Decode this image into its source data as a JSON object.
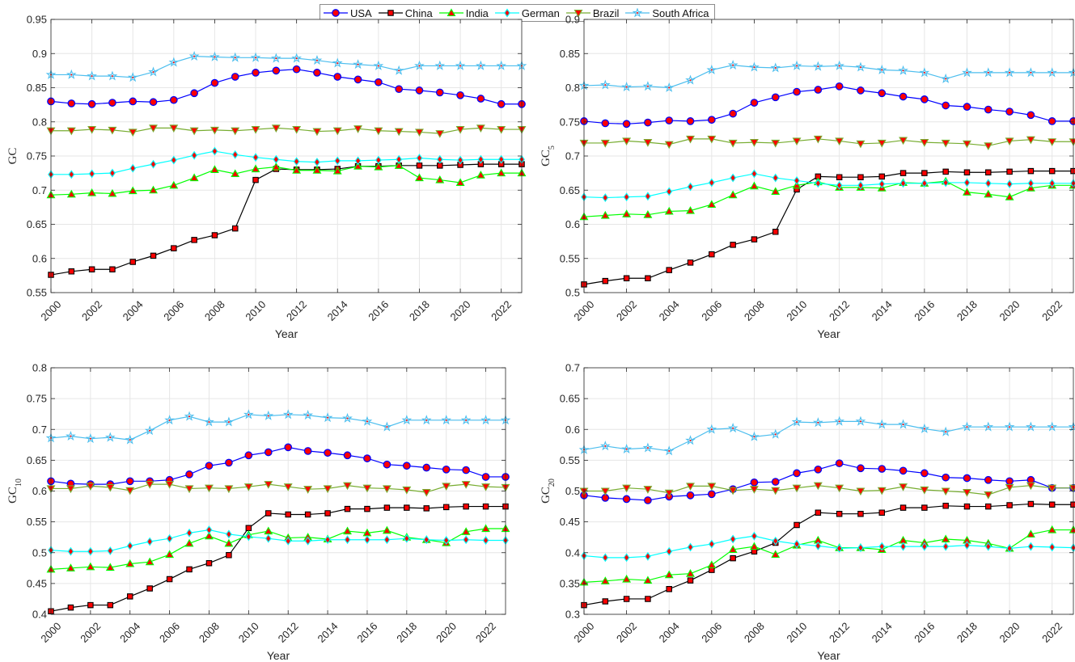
{
  "legend": [
    {
      "name": "USA",
      "color": "#0000ff",
      "marker": "circle",
      "fill": "#ff0000"
    },
    {
      "name": "China",
      "color": "#000000",
      "marker": "square",
      "fill": "#ff0000"
    },
    {
      "name": "India",
      "color": "#00ff00",
      "marker": "triangle-up",
      "fill": "#ff0000"
    },
    {
      "name": "German",
      "color": "#00ffff",
      "marker": "diamond",
      "fill": "#ff0000"
    },
    {
      "name": "Brazil",
      "color": "#77ac30",
      "marker": "triangle-down",
      "fill": "#ff0000"
    },
    {
      "name": "South Africa",
      "color": "#4dbeee",
      "marker": "star",
      "fill": "#ff0000"
    }
  ],
  "chart_data": [
    {
      "type": "line",
      "title": "",
      "xlabel": "Year",
      "ylabel": "GC",
      "ylabel_base": "GC",
      "ylabel_sub": "",
      "xlim": [
        2000,
        2023
      ],
      "ylim": [
        0.55,
        0.95
      ],
      "yticks": [
        "0.55",
        "0.6",
        "0.65",
        "0.7",
        "0.75",
        "0.8",
        "0.85",
        "0.9",
        "0.95"
      ],
      "xticks": [
        "2000",
        "2002",
        "2004",
        "2006",
        "2008",
        "2010",
        "2012",
        "2014",
        "2016",
        "2018",
        "2020",
        "2022"
      ],
      "grid": true,
      "x": [
        2000,
        2001,
        2002,
        2003,
        2004,
        2005,
        2006,
        2007,
        2008,
        2009,
        2010,
        2011,
        2012,
        2013,
        2014,
        2015,
        2016,
        2017,
        2018,
        2019,
        2020,
        2021,
        2022,
        2023
      ],
      "series": [
        {
          "name": "USA",
          "values": [
            0.83,
            0.827,
            0.826,
            0.828,
            0.83,
            0.829,
            0.832,
            0.842,
            0.857,
            0.866,
            0.872,
            0.875,
            0.877,
            0.872,
            0.866,
            0.862,
            0.858,
            0.848,
            0.846,
            0.843,
            0.839,
            0.834,
            0.826,
            0.826
          ]
        },
        {
          "name": "China",
          "values": [
            0.576,
            0.581,
            0.584,
            0.584,
            0.595,
            0.604,
            0.615,
            0.627,
            0.634,
            0.644,
            0.715,
            0.731,
            0.73,
            0.73,
            0.731,
            0.735,
            0.735,
            0.736,
            0.736,
            0.736,
            0.737,
            0.738,
            0.738,
            0.738
          ]
        },
        {
          "name": "India",
          "values": [
            0.693,
            0.694,
            0.696,
            0.695,
            0.699,
            0.7,
            0.707,
            0.718,
            0.73,
            0.724,
            0.731,
            0.734,
            0.729,
            0.729,
            0.728,
            0.735,
            0.734,
            0.736,
            0.718,
            0.715,
            0.711,
            0.722,
            0.725,
            0.725
          ]
        },
        {
          "name": "German",
          "values": [
            0.723,
            0.723,
            0.724,
            0.725,
            0.732,
            0.738,
            0.744,
            0.751,
            0.757,
            0.752,
            0.748,
            0.745,
            0.742,
            0.741,
            0.743,
            0.743,
            0.744,
            0.745,
            0.747,
            0.745,
            0.744,
            0.745,
            0.745,
            0.745
          ]
        },
        {
          "name": "Brazil",
          "values": [
            0.787,
            0.787,
            0.789,
            0.788,
            0.785,
            0.791,
            0.791,
            0.787,
            0.788,
            0.787,
            0.789,
            0.791,
            0.789,
            0.786,
            0.787,
            0.79,
            0.787,
            0.786,
            0.785,
            0.783,
            0.789,
            0.791,
            0.789,
            0.789
          ]
        },
        {
          "name": "South Africa",
          "values": [
            0.869,
            0.869,
            0.867,
            0.867,
            0.865,
            0.873,
            0.887,
            0.896,
            0.895,
            0.894,
            0.894,
            0.893,
            0.893,
            0.89,
            0.886,
            0.884,
            0.882,
            0.875,
            0.882,
            0.882,
            0.882,
            0.882,
            0.882,
            0.882
          ]
        }
      ]
    },
    {
      "type": "line",
      "title": "",
      "xlabel": "Year",
      "ylabel": "GC5",
      "ylabel_base": "GC",
      "ylabel_sub": "5",
      "xlim": [
        2000,
        2023
      ],
      "ylim": [
        0.5,
        0.9
      ],
      "yticks": [
        "0.5",
        "0.55",
        "0.6",
        "0.65",
        "0.7",
        "0.75",
        "0.8",
        "0.85",
        "0.9"
      ],
      "xticks": [
        "2000",
        "2002",
        "2004",
        "2006",
        "2008",
        "2010",
        "2012",
        "2014",
        "2016",
        "2018",
        "2020",
        "2022"
      ],
      "grid": true,
      "x": [
        2000,
        2001,
        2002,
        2003,
        2004,
        2005,
        2006,
        2007,
        2008,
        2009,
        2010,
        2011,
        2012,
        2013,
        2014,
        2015,
        2016,
        2017,
        2018,
        2019,
        2020,
        2021,
        2022,
        2023
      ],
      "series": [
        {
          "name": "USA",
          "values": [
            0.751,
            0.748,
            0.747,
            0.749,
            0.752,
            0.751,
            0.753,
            0.762,
            0.778,
            0.786,
            0.794,
            0.797,
            0.802,
            0.796,
            0.792,
            0.787,
            0.783,
            0.774,
            0.772,
            0.768,
            0.765,
            0.76,
            0.751,
            0.751
          ]
        },
        {
          "name": "China",
          "values": [
            0.512,
            0.517,
            0.521,
            0.521,
            0.533,
            0.544,
            0.556,
            0.57,
            0.578,
            0.589,
            0.651,
            0.67,
            0.669,
            0.669,
            0.67,
            0.675,
            0.675,
            0.677,
            0.676,
            0.676,
            0.677,
            0.678,
            0.678,
            0.678
          ]
        },
        {
          "name": "India",
          "values": [
            0.611,
            0.613,
            0.615,
            0.614,
            0.619,
            0.62,
            0.629,
            0.643,
            0.656,
            0.648,
            0.657,
            0.662,
            0.654,
            0.654,
            0.653,
            0.661,
            0.66,
            0.663,
            0.647,
            0.644,
            0.64,
            0.653,
            0.657,
            0.657
          ]
        },
        {
          "name": "German",
          "values": [
            0.64,
            0.639,
            0.64,
            0.641,
            0.648,
            0.655,
            0.661,
            0.668,
            0.674,
            0.668,
            0.664,
            0.66,
            0.657,
            0.657,
            0.659,
            0.66,
            0.66,
            0.661,
            0.661,
            0.66,
            0.659,
            0.66,
            0.66,
            0.66
          ]
        },
        {
          "name": "Brazil",
          "values": [
            0.719,
            0.719,
            0.722,
            0.72,
            0.717,
            0.725,
            0.725,
            0.719,
            0.72,
            0.719,
            0.722,
            0.725,
            0.722,
            0.718,
            0.719,
            0.723,
            0.72,
            0.719,
            0.718,
            0.715,
            0.722,
            0.724,
            0.721,
            0.721
          ]
        },
        {
          "name": "South Africa",
          "values": [
            0.803,
            0.804,
            0.801,
            0.802,
            0.8,
            0.811,
            0.826,
            0.833,
            0.83,
            0.829,
            0.832,
            0.831,
            0.832,
            0.83,
            0.826,
            0.825,
            0.822,
            0.813,
            0.822,
            0.822,
            0.822,
            0.822,
            0.822,
            0.822
          ]
        }
      ]
    },
    {
      "type": "line",
      "title": "",
      "xlabel": "Year",
      "ylabel": "GC10",
      "ylabel_base": "GC",
      "ylabel_sub": "10",
      "xlim": [
        2000,
        2023
      ],
      "ylim": [
        0.4,
        0.8
      ],
      "yticks": [
        "0.4",
        "0.45",
        "0.5",
        "0.55",
        "0.6",
        "0.65",
        "0.7",
        "0.75",
        "0.8"
      ],
      "xticks": [
        "2000",
        "2002",
        "2004",
        "2006",
        "2008",
        "2010",
        "2012",
        "2014",
        "2016",
        "2018",
        "2020",
        "2022"
      ],
      "grid": true,
      "x": [
        2000,
        2001,
        2002,
        2003,
        2004,
        2005,
        2006,
        2007,
        2008,
        2009,
        2010,
        2011,
        2012,
        2013,
        2014,
        2015,
        2016,
        2017,
        2018,
        2019,
        2020,
        2021,
        2022,
        2023
      ],
      "series": [
        {
          "name": "USA",
          "values": [
            0.616,
            0.612,
            0.611,
            0.611,
            0.616,
            0.616,
            0.618,
            0.627,
            0.641,
            0.646,
            0.658,
            0.663,
            0.671,
            0.665,
            0.662,
            0.658,
            0.653,
            0.643,
            0.641,
            0.638,
            0.635,
            0.634,
            0.623,
            0.623
          ]
        },
        {
          "name": "China",
          "values": [
            0.405,
            0.411,
            0.415,
            0.415,
            0.429,
            0.442,
            0.457,
            0.473,
            0.483,
            0.496,
            0.54,
            0.564,
            0.562,
            0.562,
            0.564,
            0.571,
            0.571,
            0.573,
            0.573,
            0.572,
            0.574,
            0.575,
            0.575,
            0.575
          ]
        },
        {
          "name": "India",
          "values": [
            0.473,
            0.475,
            0.477,
            0.476,
            0.482,
            0.485,
            0.497,
            0.515,
            0.527,
            0.515,
            0.529,
            0.535,
            0.524,
            0.525,
            0.522,
            0.535,
            0.532,
            0.536,
            0.525,
            0.521,
            0.516,
            0.534,
            0.539,
            0.539
          ]
        },
        {
          "name": "German",
          "values": [
            0.504,
            0.502,
            0.502,
            0.503,
            0.511,
            0.518,
            0.523,
            0.532,
            0.537,
            0.53,
            0.526,
            0.523,
            0.519,
            0.519,
            0.521,
            0.521,
            0.521,
            0.521,
            0.523,
            0.521,
            0.52,
            0.521,
            0.52,
            0.52
          ]
        },
        {
          "name": "Brazil",
          "values": [
            0.604,
            0.604,
            0.608,
            0.606,
            0.601,
            0.611,
            0.611,
            0.604,
            0.605,
            0.604,
            0.607,
            0.611,
            0.607,
            0.603,
            0.604,
            0.609,
            0.605,
            0.604,
            0.602,
            0.598,
            0.608,
            0.611,
            0.607,
            0.606
          ]
        },
        {
          "name": "South Africa",
          "values": [
            0.686,
            0.689,
            0.685,
            0.687,
            0.683,
            0.698,
            0.715,
            0.721,
            0.712,
            0.712,
            0.724,
            0.722,
            0.724,
            0.723,
            0.719,
            0.718,
            0.713,
            0.704,
            0.715,
            0.715,
            0.715,
            0.715,
            0.715,
            0.715
          ]
        }
      ]
    },
    {
      "type": "line",
      "title": "",
      "xlabel": "Year",
      "ylabel": "GC20",
      "ylabel_base": "GC",
      "ylabel_sub": "20",
      "xlim": [
        2000,
        2023
      ],
      "ylim": [
        0.3,
        0.7
      ],
      "yticks": [
        "0.3",
        "0.35",
        "0.4",
        "0.45",
        "0.5",
        "0.55",
        "0.6",
        "0.65",
        "0.7"
      ],
      "xticks": [
        "2000",
        "2002",
        "2004",
        "2006",
        "2008",
        "2010",
        "2012",
        "2014",
        "2016",
        "2018",
        "2020",
        "2022"
      ],
      "grid": true,
      "x": [
        2000,
        2001,
        2002,
        2003,
        2004,
        2005,
        2006,
        2007,
        2008,
        2009,
        2010,
        2011,
        2012,
        2013,
        2014,
        2015,
        2016,
        2017,
        2018,
        2019,
        2020,
        2021,
        2022,
        2023
      ],
      "series": [
        {
          "name": "USA",
          "values": [
            0.493,
            0.489,
            0.487,
            0.485,
            0.491,
            0.493,
            0.495,
            0.503,
            0.514,
            0.515,
            0.529,
            0.535,
            0.545,
            0.537,
            0.536,
            0.533,
            0.529,
            0.522,
            0.521,
            0.518,
            0.516,
            0.518,
            0.505,
            0.505
          ]
        },
        {
          "name": "China",
          "values": [
            0.315,
            0.321,
            0.325,
            0.325,
            0.341,
            0.355,
            0.372,
            0.391,
            0.402,
            0.416,
            0.445,
            0.465,
            0.463,
            0.463,
            0.465,
            0.473,
            0.473,
            0.476,
            0.475,
            0.475,
            0.477,
            0.479,
            0.478,
            0.478
          ]
        },
        {
          "name": "India",
          "values": [
            0.352,
            0.354,
            0.357,
            0.355,
            0.364,
            0.366,
            0.38,
            0.405,
            0.41,
            0.397,
            0.412,
            0.42,
            0.408,
            0.408,
            0.405,
            0.42,
            0.416,
            0.422,
            0.42,
            0.415,
            0.407,
            0.43,
            0.437,
            0.437
          ]
        },
        {
          "name": "German",
          "values": [
            0.395,
            0.392,
            0.392,
            0.394,
            0.402,
            0.409,
            0.414,
            0.422,
            0.427,
            0.419,
            0.414,
            0.411,
            0.407,
            0.408,
            0.41,
            0.41,
            0.41,
            0.41,
            0.412,
            0.41,
            0.407,
            0.41,
            0.409,
            0.408
          ]
        },
        {
          "name": "Brazil",
          "values": [
            0.5,
            0.5,
            0.505,
            0.503,
            0.497,
            0.508,
            0.508,
            0.501,
            0.503,
            0.501,
            0.505,
            0.509,
            0.505,
            0.5,
            0.501,
            0.507,
            0.502,
            0.5,
            0.498,
            0.494,
            0.506,
            0.509,
            0.505,
            0.505
          ]
        },
        {
          "name": "South Africa",
          "values": [
            0.567,
            0.573,
            0.568,
            0.57,
            0.565,
            0.582,
            0.6,
            0.602,
            0.588,
            0.592,
            0.612,
            0.611,
            0.613,
            0.613,
            0.608,
            0.608,
            0.601,
            0.596,
            0.604,
            0.604,
            0.604,
            0.604,
            0.604,
            0.604
          ]
        }
      ]
    }
  ]
}
